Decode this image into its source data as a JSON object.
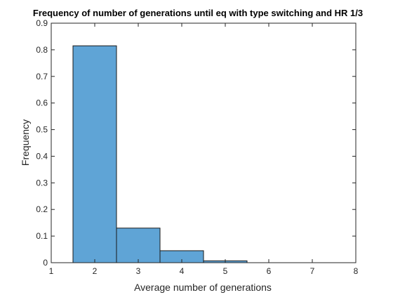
{
  "chart_data": {
    "type": "bar",
    "title": "Frequency of number of generations until eq with type switching and HR 1/3",
    "xlabel": "Average number of generations",
    "ylabel": "Frequency",
    "xlim": [
      1,
      8
    ],
    "ylim": [
      0,
      0.9
    ],
    "xticks": [
      "1",
      "2",
      "3",
      "4",
      "5",
      "6",
      "7",
      "8"
    ],
    "yticks": [
      "0",
      "0.1",
      "0.2",
      "0.3",
      "0.4",
      "0.5",
      "0.6",
      "0.7",
      "0.8",
      "0.9"
    ],
    "bins": [
      {
        "x0": 1.5,
        "x1": 2.5,
        "value": 0.815
      },
      {
        "x0": 2.5,
        "x1": 3.5,
        "value": 0.13
      },
      {
        "x0": 3.5,
        "x1": 4.5,
        "value": 0.045
      },
      {
        "x0": 4.5,
        "x1": 5.5,
        "value": 0.007
      }
    ],
    "bar_color": "#5fa4d6",
    "edge_color": "#1a1a1a",
    "grid": false,
    "legend": "none"
  }
}
